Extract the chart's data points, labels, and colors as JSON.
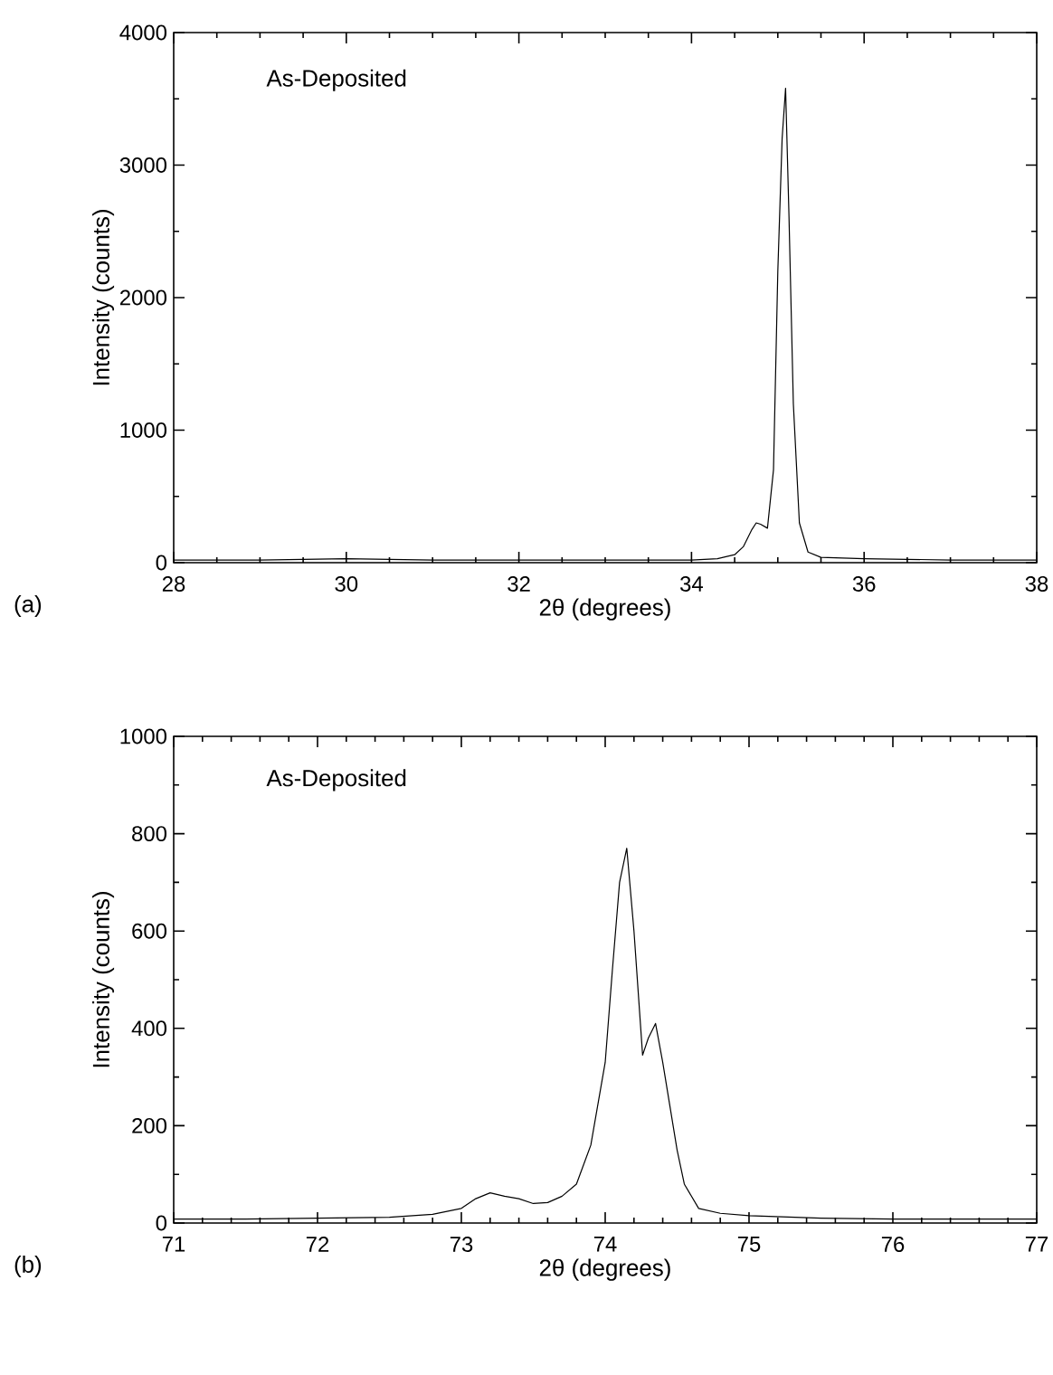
{
  "chart_data": [
    {
      "type": "line",
      "xlabel": "2θ (degrees)",
      "ylabel": "Intensity (counts)",
      "annotations": [
        "As-Deposited",
        "(a)"
      ],
      "x": [
        28,
        29,
        30,
        31,
        32,
        33,
        33.5,
        34,
        34.3,
        34.5,
        34.6,
        34.7,
        34.75,
        34.8,
        34.88,
        34.95,
        35.0,
        35.05,
        35.09,
        35.13,
        35.18,
        35.25,
        35.35,
        35.5,
        36,
        37,
        38
      ],
      "series": [
        {
          "color": "#000000",
          "values": [
            20,
            20,
            30,
            20,
            20,
            20,
            20,
            20,
            30,
            60,
            120,
            250,
            300,
            290,
            260,
            700,
            2200,
            3200,
            3580,
            2600,
            1200,
            300,
            80,
            40,
            30,
            20,
            20
          ]
        }
      ],
      "xlim": [
        28,
        38
      ],
      "xticks": [
        28,
        30,
        32,
        34,
        36,
        38
      ],
      "ylim": [
        0,
        4000
      ],
      "yticks": [
        0,
        1000,
        2000,
        3000,
        4000
      ],
      "marker": "none",
      "line_style": "solid",
      "grid": false
    },
    {
      "type": "line",
      "xlabel": "2θ (degrees)",
      "ylabel": "Intensity (counts)",
      "annotations": [
        "As-Deposited",
        "(b)"
      ],
      "x": [
        71,
        71.5,
        72,
        72.5,
        72.8,
        73.0,
        73.1,
        73.2,
        73.3,
        73.4,
        73.5,
        73.6,
        73.7,
        73.8,
        73.9,
        74.0,
        74.05,
        74.1,
        74.15,
        74.2,
        74.26,
        74.3,
        74.35,
        74.4,
        74.45,
        74.5,
        74.55,
        74.65,
        74.8,
        75,
        75.5,
        76,
        76.5,
        77
      ],
      "series": [
        {
          "color": "#000000",
          "values": [
            8,
            8,
            10,
            12,
            18,
            30,
            50,
            62,
            55,
            50,
            40,
            42,
            55,
            80,
            160,
            330,
            520,
            700,
            770,
            600,
            345,
            380,
            410,
            330,
            240,
            150,
            80,
            30,
            20,
            15,
            10,
            8,
            8,
            8
          ]
        }
      ],
      "xlim": [
        71,
        77
      ],
      "xticks": [
        71,
        72,
        73,
        74,
        75,
        76,
        77
      ],
      "ylim": [
        0,
        1000
      ],
      "yticks": [
        0,
        200,
        400,
        600,
        800,
        1000
      ],
      "marker": "none",
      "line_style": "solid",
      "grid": false
    }
  ]
}
